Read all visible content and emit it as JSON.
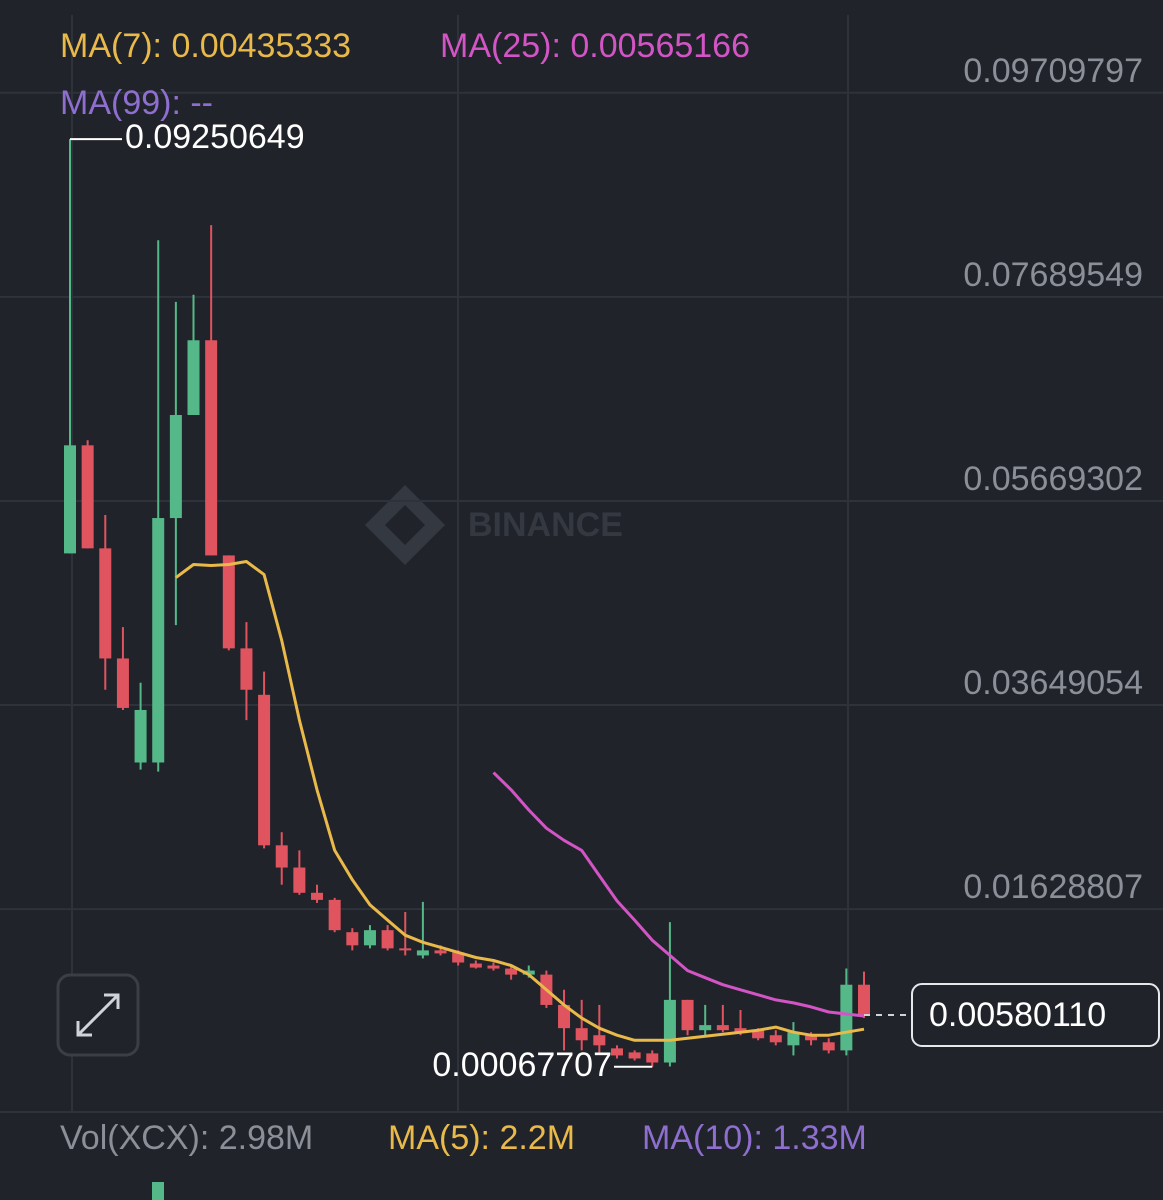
{
  "chart_data": {
    "type": "candlestick",
    "watermark": "BINANCE",
    "up_color": "#55b888",
    "down_color": "#e0545f",
    "grid": true,
    "ylim": [
      -0.0038,
      0.1048
    ],
    "yticks": [
      0.09709797,
      0.07689549,
      0.05669302,
      0.03649054,
      0.01628807
    ],
    "open": [
      0.0515,
      0.0622,
      0.052,
      0.0411,
      0.0308,
      0.0308,
      0.055,
      0.0652,
      0.0726,
      0.0513,
      0.0421,
      0.0375,
      0.0226,
      0.0204,
      0.0179,
      0.0172,
      0.014,
      0.0127,
      0.0142,
      0.0124,
      0.0117,
      0.0122,
      0.012,
      0.0109,
      0.0107,
      0.0104,
      0.0098,
      0.0098,
      0.0068,
      0.0045,
      0.0038,
      0.0025,
      0.0021,
      0.002,
      0.0011,
      0.0073,
      0.0043,
      0.0048,
      0.0045,
      0.0043,
      0.0038,
      0.0028,
      0.0038,
      0.0031,
      0.0023,
      0.0088
    ],
    "high": [
      0.09250649,
      0.0627,
      0.0553,
      0.0442,
      0.0387,
      0.0825,
      0.0764,
      0.0771,
      0.084,
      0.0513,
      0.0447,
      0.0398,
      0.0239,
      0.0221,
      0.0187,
      0.0174,
      0.0144,
      0.0147,
      0.0147,
      0.016,
      0.017,
      0.0127,
      0.0122,
      0.0112,
      0.011,
      0.0107,
      0.0107,
      0.0102,
      0.0083,
      0.0073,
      0.0068,
      0.0028,
      0.0023,
      0.0023,
      0.015,
      0.0073,
      0.0068,
      0.0068,
      0.0063,
      0.0045,
      0.0043,
      0.0051,
      0.0041,
      0.0035,
      0.0104,
      0.0101
    ],
    "low": [
      0.0515,
      0.052,
      0.038,
      0.036,
      0.0301,
      0.0299,
      0.0444,
      0.0652,
      0.0513,
      0.0419,
      0.035,
      0.0223,
      0.0187,
      0.0177,
      0.0169,
      0.014,
      0.0122,
      0.0124,
      0.0122,
      0.0117,
      0.0114,
      0.0117,
      0.0107,
      0.0104,
      0.0102,
      0.0093,
      0.0095,
      0.0065,
      0.0023,
      0.0023,
      0.0021,
      0.0015,
      0.0013,
      0.00067707,
      0.0007,
      0.0038,
      0.0038,
      0.0041,
      0.0038,
      0.0033,
      0.0028,
      0.0018,
      0.0028,
      0.002,
      0.0018,
      0.0055
    ],
    "close": [
      0.0622,
      0.052,
      0.0411,
      0.0362,
      0.036,
      0.055,
      0.0652,
      0.0726,
      0.0513,
      0.0421,
      0.038,
      0.0226,
      0.0204,
      0.0179,
      0.0172,
      0.0142,
      0.0127,
      0.0142,
      0.0124,
      0.0122,
      0.0122,
      0.0119,
      0.011,
      0.0105,
      0.0104,
      0.0098,
      0.0102,
      0.0068,
      0.0045,
      0.0033,
      0.0028,
      0.0018,
      0.0015,
      0.0011,
      0.0073,
      0.0043,
      0.0048,
      0.0043,
      0.0041,
      0.0035,
      0.0031,
      0.0041,
      0.0033,
      0.0023,
      0.0088,
      0.0058011
    ],
    "current_price": {
      "value": 0.0058011,
      "label": "0.00580110"
    },
    "series": [
      {
        "name": "MA(7): 0.00435333",
        "color": "#e9b949",
        "values": [
          null,
          null,
          null,
          null,
          null,
          null,
          0.0491,
          0.0504,
          0.0503,
          0.0504,
          0.0507,
          0.0494,
          0.0429,
          0.035,
          0.0281,
          0.0221,
          0.0192,
          0.0167,
          0.0152,
          0.0137,
          0.013,
          0.0125,
          0.012,
          0.0115,
          0.0112,
          0.0107,
          0.0098,
          0.0083,
          0.0068,
          0.0055,
          0.0045,
          0.0038,
          0.0033,
          0.0033,
          0.0033,
          0.0035,
          0.0037,
          0.0039,
          0.0041,
          0.0043,
          0.0046,
          0.0041,
          0.0038,
          0.0038,
          0.0041,
          0.0044
        ]
      },
      {
        "name": "MA(25): 0.00565166",
        "color": "#d355c5",
        "values": [
          null,
          null,
          null,
          null,
          null,
          null,
          null,
          null,
          null,
          null,
          null,
          null,
          null,
          null,
          null,
          null,
          null,
          null,
          null,
          null,
          null,
          null,
          null,
          null,
          0.0298,
          0.0281,
          0.0261,
          0.0243,
          0.0231,
          0.0221,
          0.0196,
          0.0171,
          0.0152,
          0.0132,
          0.0117,
          0.0102,
          0.0095,
          0.0088,
          0.0083,
          0.0078,
          0.0073,
          0.007,
          0.0066,
          0.0061,
          0.0059,
          0.0057
        ]
      },
      {
        "name": "MA(99): --",
        "color": "#8e6fd0"
      }
    ],
    "volume_legend": [
      {
        "text": "Vol(XCX): 2.98M",
        "color": "#8a8f98"
      },
      {
        "text": "MA(5): 2.2M",
        "color": "#e9b949"
      },
      {
        "text": "MA(10): 1.33M",
        "color": "#8e6fd0"
      }
    ]
  }
}
